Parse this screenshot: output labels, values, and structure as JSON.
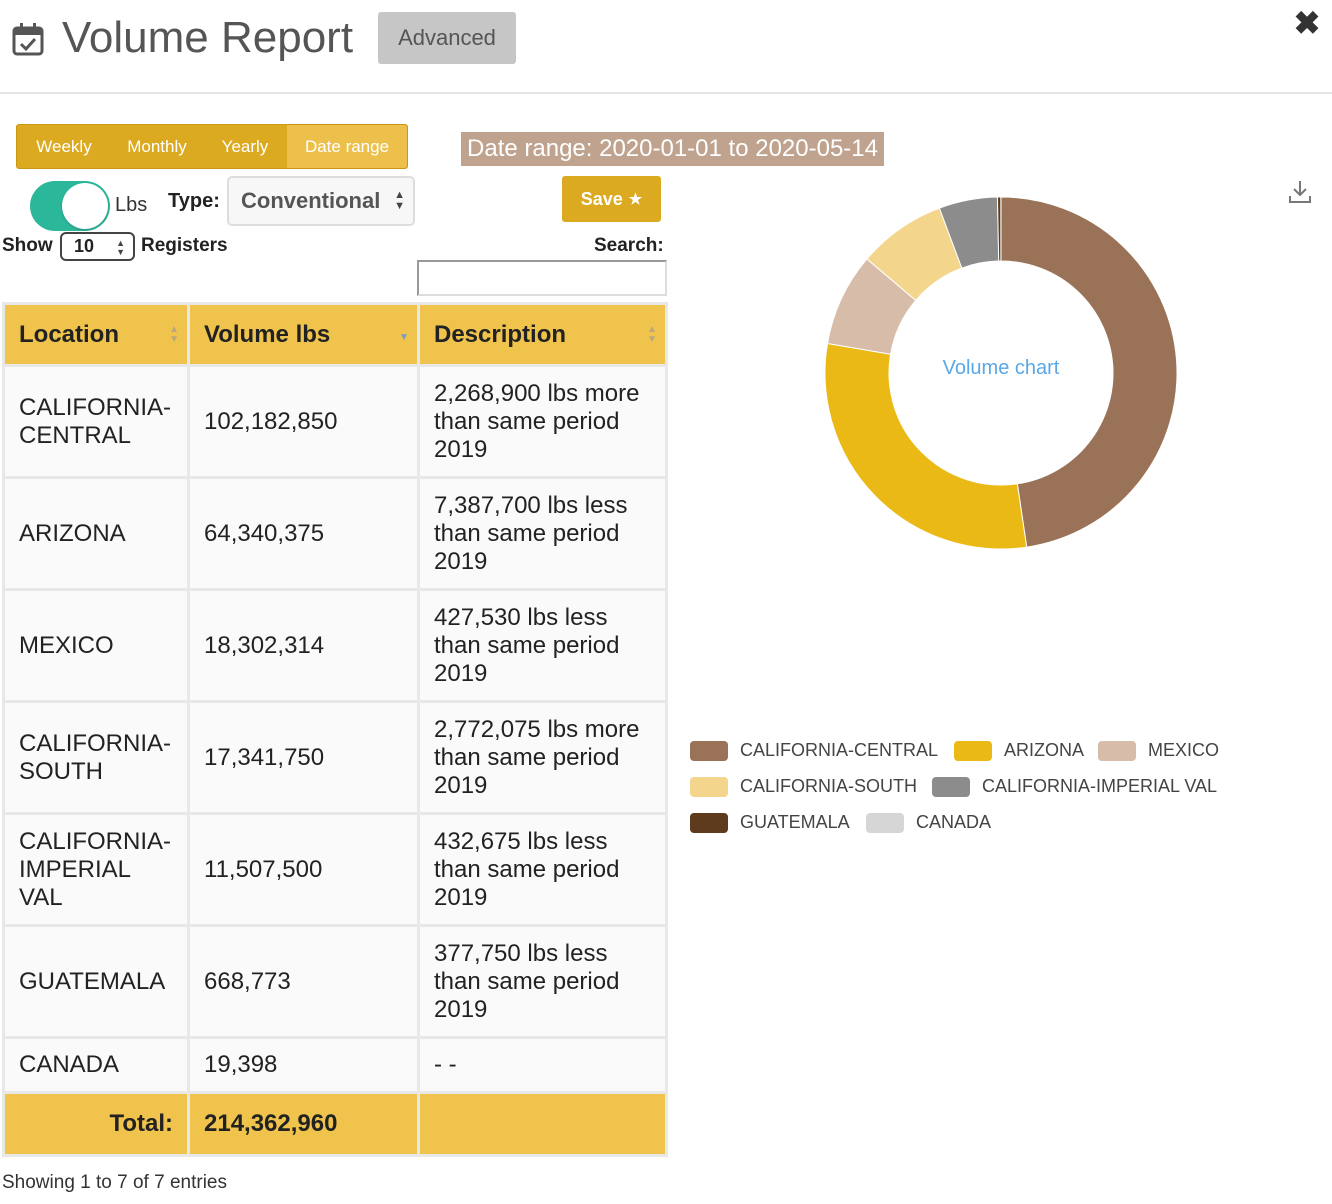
{
  "header": {
    "title": "Volume Report",
    "advanced_label": "Advanced",
    "close_glyph": "✖"
  },
  "period_tabs": [
    {
      "label": "Weekly",
      "active": false
    },
    {
      "label": "Monthly",
      "active": false
    },
    {
      "label": "Yearly",
      "active": false
    },
    {
      "label": "Date range",
      "active": true
    }
  ],
  "date_range_label": "Date range: 2020-01-01 to 2020-05-14",
  "controls": {
    "unit_toggle_on": true,
    "unit_label": "Lbs",
    "type_label": "Type:",
    "type_value": "Conventional",
    "save_label": "Save",
    "save_icon": "★",
    "show_label": "Show",
    "show_value": "10",
    "registers_label": "Registers",
    "search_label": "Search:",
    "search_value": ""
  },
  "table": {
    "headers": [
      "Location",
      "Volume lbs",
      "Description"
    ],
    "rows": [
      {
        "location": "CALIFORNIA-CENTRAL",
        "volume": "102,182,850",
        "description": "2,268,900 lbs more than same period 2019"
      },
      {
        "location": "ARIZONA",
        "volume": "64,340,375",
        "description": "7,387,700 lbs less than same period 2019"
      },
      {
        "location": "MEXICO",
        "volume": "18,302,314",
        "description": "427,530 lbs less than same period 2019"
      },
      {
        "location": "CALIFORNIA-SOUTH",
        "volume": "17,341,750",
        "description": "2,772,075 lbs more than same period 2019"
      },
      {
        "location": "CALIFORNIA-IMPERIAL VAL",
        "volume": "11,507,500",
        "description": "432,675 lbs less than same period 2019"
      },
      {
        "location": "GUATEMALA",
        "volume": "668,773",
        "description": "377,750 lbs less than same period 2019"
      },
      {
        "location": "CANADA",
        "volume": "19,398",
        "description": "- -"
      }
    ],
    "total_label": "Total:",
    "total_value": "214,362,960",
    "info": "Showing 1 to 7 of 7 entries"
  },
  "chart_data": {
    "type": "pie",
    "title": "Volume chart",
    "categories": [
      "CALIFORNIA-CENTRAL",
      "ARIZONA",
      "MEXICO",
      "CALIFORNIA-SOUTH",
      "CALIFORNIA-IMPERIAL VAL",
      "GUATEMALA",
      "CANADA"
    ],
    "values": [
      102182850,
      64340375,
      18302314,
      17341750,
      11507500,
      668773,
      19398
    ],
    "colors": [
      "#9a7257",
      "#ebb916",
      "#d8bcaa",
      "#f3d68b",
      "#8c8c8c",
      "#5e3b1c",
      "#d6d6d6"
    ],
    "donut": true,
    "legend_position": "bottom"
  },
  "icons": {
    "calendar": "calendar-check-icon",
    "download": "download-icon",
    "close": "close-icon"
  }
}
